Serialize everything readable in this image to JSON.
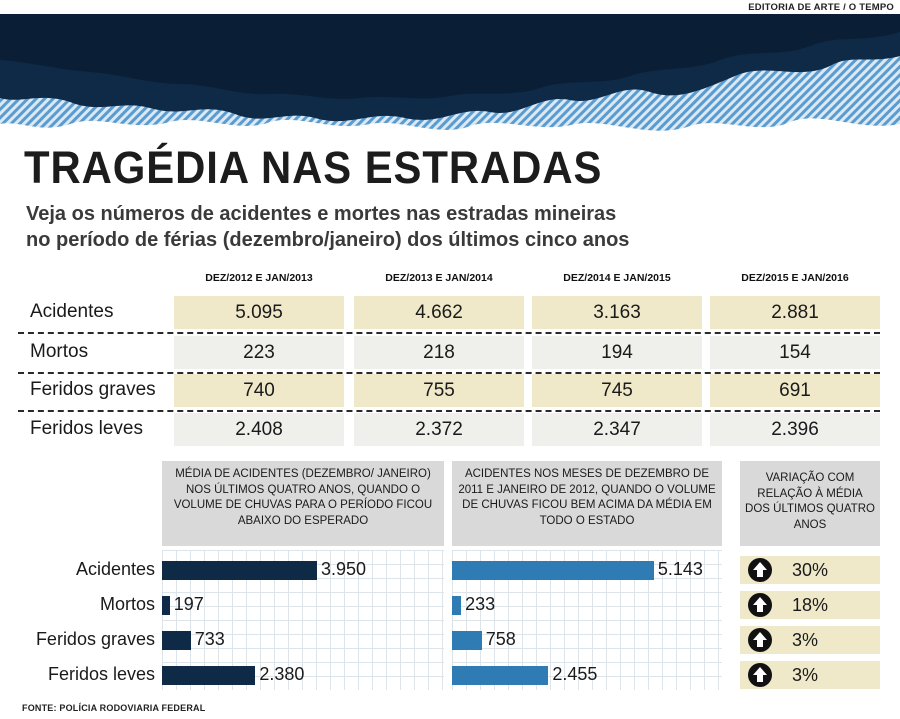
{
  "credit": "EDITORIA DE ARTE / O TEMPO",
  "title": "TRAGÉDIA NAS ESTRADAS",
  "subtitle_line1": "Veja os números de acidentes e mortes nas estradas mineiras",
  "subtitle_line2": "no período de férias (dezembro/janeiro) dos últimos cinco anos",
  "source": "FONTE: POLÍCIA RODOVIARIA FEDERAL",
  "colors": {
    "dark_bar": "#0e2a47",
    "light_bar": "#2f7bb3",
    "highlight": "#efe9c9",
    "panel": "#d9d9d9"
  },
  "chart_data": [
    {
      "type": "table",
      "columns": [
        "DEZ/2012 E JAN/2013",
        "DEZ/2013 E JAN/2014",
        "DEZ/2014 E JAN/2015",
        "DEZ/2015 E JAN/2016"
      ],
      "rows": [
        {
          "label": "Acidentes",
          "values": [
            "5.095",
            "4.662",
            "3.163",
            "2.881"
          ]
        },
        {
          "label": "Mortos",
          "values": [
            "223",
            "218",
            "194",
            "154"
          ]
        },
        {
          "label": "Feridos graves",
          "values": [
            "740",
            "755",
            "745",
            "691"
          ]
        },
        {
          "label": "Feridos leves",
          "values": [
            "2.408",
            "2.372",
            "2.347",
            "2.396"
          ]
        }
      ]
    },
    {
      "type": "bar",
      "orientation": "horizontal",
      "categories": [
        "Acidentes",
        "Mortos",
        "Feridos graves",
        "Feridos leves"
      ],
      "series": [
        {
          "name": "MÉDIA DE ACIDENTES (DEZEMBRO/ JANEIRO) NOS ÚLTIMOS QUATRO ANOS, QUANDO O VOLUME DE CHUVAS PARA O PERÍODO FICOU ABAIXO DO ESPERADO",
          "values": [
            3950,
            197,
            733,
            2380
          ],
          "labels": [
            "3.950",
            "197",
            "733",
            "2.380"
          ],
          "color": "#0e2a47"
        },
        {
          "name": "ACIDENTES NOS MESES DE DEZEMBRO DE 2011 E JANEIRO DE 2012, QUANDO O VOLUME DE CHUVAS FICOU BEM ACIMA DA MÉDIA EM TODO O ESTADO",
          "values": [
            5143,
            233,
            758,
            2455
          ],
          "labels": [
            "5.143",
            "233",
            "758",
            "2.455"
          ],
          "color": "#2f7bb3"
        }
      ],
      "variation": {
        "title": "VARIAÇÃO COM RELAÇÃO À MÉDIA DOS ÚLTIMOS QUATRO ANOS",
        "values": [
          "30%",
          "18%",
          "3%",
          "3%"
        ],
        "direction": "up"
      }
    }
  ]
}
